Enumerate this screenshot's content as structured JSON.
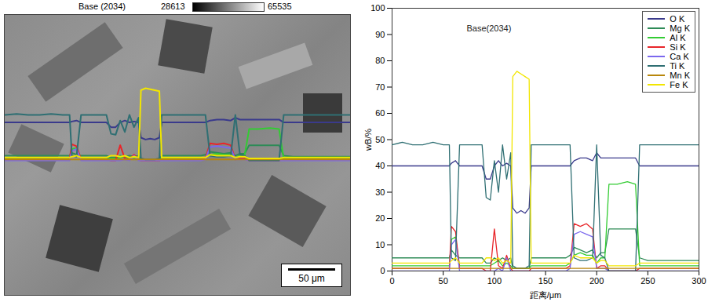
{
  "chart_data": [
    {
      "type": "image",
      "title": "Base (2034)",
      "colorbar": {
        "range": [
          28613,
          65535
        ]
      },
      "scale_bar": "50 μm"
    },
    {
      "type": "line",
      "title": "Base(2034)",
      "x_label": "距离/μm",
      "y_label": "wB/%",
      "x": [
        0,
        10,
        20,
        30,
        40,
        50,
        56,
        58,
        62,
        66,
        70,
        80,
        86,
        88,
        92,
        96,
        100,
        104,
        108,
        112,
        116,
        118,
        122,
        126,
        130,
        134,
        136,
        140,
        150,
        160,
        170,
        174,
        178,
        184,
        190,
        196,
        200,
        204,
        208,
        212,
        220,
        230,
        238,
        242,
        250,
        260,
        270,
        280,
        290,
        300
      ],
      "series": [
        {
          "name": "O K",
          "color": "#3a3a8c",
          "values": [
            40,
            40,
            40,
            40,
            40,
            40,
            40,
            41,
            42,
            40,
            40,
            40,
            40,
            40,
            35,
            35,
            40,
            42,
            40,
            41,
            40,
            24,
            22,
            23,
            22,
            24,
            40,
            40,
            40,
            40,
            40,
            40,
            42,
            43,
            43,
            42,
            45,
            43,
            43,
            43,
            43,
            43,
            43,
            40,
            40,
            40,
            40,
            40,
            40,
            40
          ]
        },
        {
          "name": "Mg K",
          "color": "#2e8b57",
          "values": [
            5,
            5,
            5,
            5,
            5,
            5,
            5,
            8,
            6,
            5,
            5,
            5,
            5,
            5,
            3,
            3,
            5,
            4,
            5,
            4,
            5,
            1,
            1,
            1,
            1,
            1,
            5,
            5,
            5,
            5,
            5,
            6,
            9,
            8,
            7,
            8,
            5,
            7,
            7,
            16,
            16,
            16,
            16,
            5,
            4,
            4,
            4,
            4,
            4,
            4
          ]
        },
        {
          "name": "Al K",
          "color": "#33cc33",
          "values": [
            2,
            2,
            2,
            2,
            2,
            2,
            2,
            12,
            13,
            2,
            2,
            2,
            2,
            2,
            2,
            2,
            3,
            4,
            2,
            3,
            2,
            1,
            1,
            1,
            1,
            1,
            2,
            2,
            2,
            2,
            2,
            3,
            6,
            7,
            6,
            6,
            3,
            5,
            5,
            33,
            33,
            34,
            33,
            2,
            2,
            2,
            2,
            2,
            2,
            2
          ]
        },
        {
          "name": "Si K",
          "color": "#e8262a",
          "values": [
            1,
            1,
            1,
            1,
            1,
            1,
            1,
            17,
            15,
            1,
            1,
            1,
            1,
            1,
            0,
            0,
            16,
            2,
            1,
            6,
            1,
            0,
            0,
            0,
            0,
            0,
            1,
            1,
            1,
            1,
            1,
            2,
            18,
            17,
            18,
            16,
            1,
            2,
            2,
            0,
            0,
            0,
            0,
            1,
            1,
            1,
            1,
            1,
            1,
            1
          ]
        },
        {
          "name": "Ca K",
          "color": "#7b68ee",
          "values": [
            0,
            0,
            0,
            0,
            0,
            0,
            0,
            10,
            12,
            0,
            0,
            0,
            0,
            0,
            0,
            0,
            0,
            1,
            0,
            5,
            0,
            0,
            0,
            0,
            0,
            0,
            0,
            0,
            0,
            0,
            0,
            1,
            14,
            15,
            14,
            13,
            1,
            1,
            1,
            0,
            0,
            0,
            0,
            0,
            0,
            0,
            0,
            0,
            0,
            0
          ]
        },
        {
          "name": "Ti K",
          "color": "#2f6f73",
          "values": [
            48,
            49,
            48,
            48,
            49,
            48,
            48,
            5,
            4,
            48,
            48,
            48,
            48,
            48,
            28,
            27,
            42,
            30,
            48,
            35,
            45,
            2,
            1,
            1,
            1,
            2,
            48,
            48,
            48,
            48,
            48,
            48,
            5,
            4,
            4,
            5,
            48,
            6,
            5,
            0,
            0,
            0,
            0,
            48,
            48,
            48,
            48,
            48,
            48,
            48
          ]
        },
        {
          "name": "Mn K",
          "color": "#b8860b",
          "values": [
            1,
            1,
            1,
            1,
            1,
            1,
            1,
            1,
            1,
            1,
            1,
            1,
            1,
            1,
            1,
            1,
            1,
            1,
            1,
            1,
            1,
            1,
            1,
            1,
            1,
            1,
            1,
            1,
            1,
            1,
            1,
            1,
            1,
            1,
            1,
            1,
            1,
            1,
            1,
            1,
            1,
            1,
            1,
            1,
            1,
            1,
            1,
            1,
            1,
            1
          ]
        },
        {
          "name": "Fe K",
          "color": "#f2e600",
          "values": [
            3,
            3,
            3,
            3,
            3,
            3,
            3,
            4,
            5,
            3,
            3,
            3,
            3,
            3,
            5,
            5,
            4,
            5,
            3,
            4,
            3,
            74,
            76,
            75,
            74,
            73,
            3,
            3,
            3,
            3,
            3,
            3,
            6,
            5,
            5,
            5,
            3,
            4,
            4,
            2,
            2,
            2,
            2,
            3,
            3,
            3,
            3,
            3,
            3,
            3
          ]
        }
      ],
      "xlim": [
        0,
        300
      ],
      "xticks": [
        0,
        50,
        100,
        150,
        200,
        250,
        300
      ],
      "ylim": [
        0,
        100
      ],
      "yticks": [
        0,
        10,
        20,
        30,
        40,
        50,
        60,
        70,
        80,
        90,
        100
      ],
      "legend": "top-right"
    }
  ]
}
